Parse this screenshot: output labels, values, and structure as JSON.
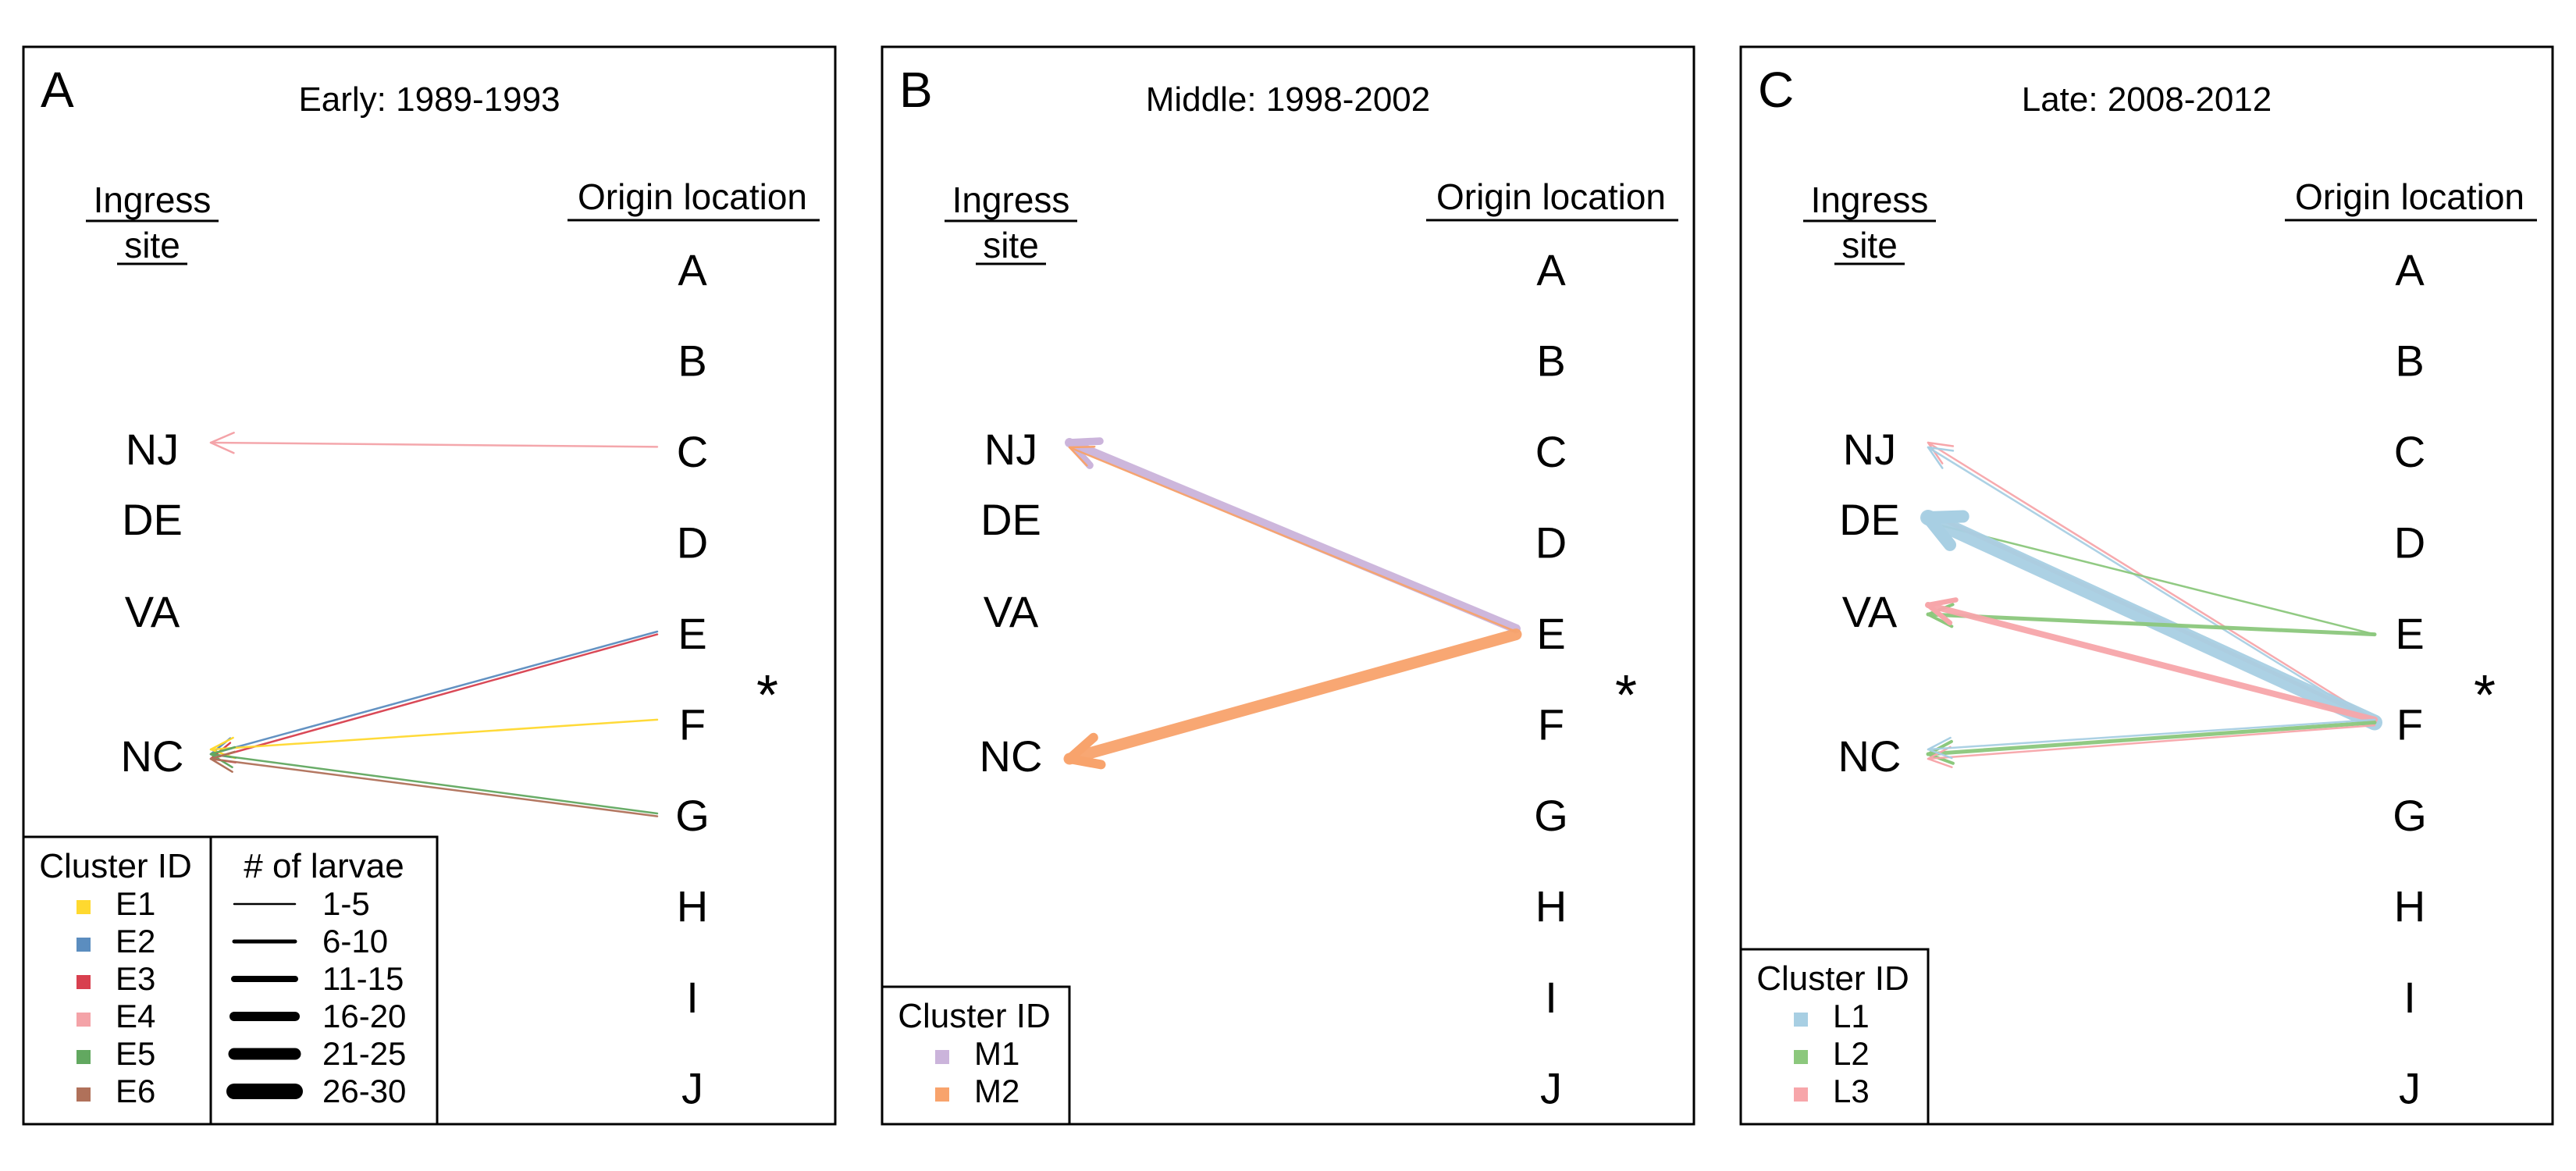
{
  "colors": {
    "E1": "#FFD92F",
    "E2": "#5B8DBF",
    "E3": "#D8404F",
    "E4": "#F4A3A8",
    "E5": "#62A860",
    "E6": "#B0715A",
    "M1": "#CBB4DB",
    "M2": "#F8A36C",
    "L1": "#A8CFE3",
    "L2": "#8CC87D",
    "L3": "#F7A6AA",
    "star": "#B8B8B8"
  },
  "labels": {
    "ingress_header_1": "Ingress",
    "ingress_header_2": "site",
    "origin_header": "Origin location",
    "cluster_id": "Cluster ID",
    "larvae_header": "# of larvae",
    "star": "*"
  },
  "ingress_sites": [
    "NJ",
    "DE",
    "VA",
    "NC"
  ],
  "origin_locations": [
    "A",
    "B",
    "C",
    "D",
    "E",
    "F",
    "G",
    "H",
    "I",
    "J"
  ],
  "larvae_bins": [
    "1-5",
    "6-10",
    "11-15",
    "16-20",
    "21-25",
    "26-30"
  ],
  "panels": [
    {
      "letter": "A",
      "title": "Early: 1989-1993",
      "clusters": [
        "E1",
        "E2",
        "E3",
        "E4",
        "E5",
        "E6"
      ],
      "flows": [
        {
          "cluster": "E4",
          "from": "C",
          "to": "NJ",
          "larvae_bin": "1-5"
        },
        {
          "cluster": "E2",
          "from": "E",
          "to": "NC",
          "larvae_bin": "1-5"
        },
        {
          "cluster": "E3",
          "from": "E",
          "to": "NC",
          "larvae_bin": "1-5"
        },
        {
          "cluster": "E1",
          "from": "F",
          "to": "NC",
          "larvae_bin": "1-5"
        },
        {
          "cluster": "E5",
          "from": "G",
          "to": "NC",
          "larvae_bin": "1-5"
        },
        {
          "cluster": "E6",
          "from": "G",
          "to": "NC",
          "larvae_bin": "1-5"
        }
      ]
    },
    {
      "letter": "B",
      "title": "Middle: 1998-2002",
      "clusters": [
        "M1",
        "M2"
      ],
      "flows": [
        {
          "cluster": "M1",
          "from": "E",
          "to": "NJ",
          "larvae_bin": "16-20"
        },
        {
          "cluster": "M2",
          "from": "E",
          "to": "NJ",
          "larvae_bin": "1-5"
        },
        {
          "cluster": "M2",
          "from": "E",
          "to": "NC",
          "larvae_bin": "21-25"
        }
      ]
    },
    {
      "letter": "C",
      "title": "Late: 2008-2012",
      "clusters": [
        "L1",
        "L2",
        "L3"
      ],
      "flows": [
        {
          "cluster": "L3",
          "from": "F",
          "to": "NJ",
          "larvae_bin": "1-5"
        },
        {
          "cluster": "L1",
          "from": "F",
          "to": "NJ",
          "larvae_bin": "1-5"
        },
        {
          "cluster": "L2",
          "from": "E",
          "to": "DE",
          "larvae_bin": "1-5"
        },
        {
          "cluster": "L3",
          "from": "F",
          "to": "DE",
          "larvae_bin": "6-10"
        },
        {
          "cluster": "L1",
          "from": "F",
          "to": "DE",
          "larvae_bin": "26-30"
        },
        {
          "cluster": "L2",
          "from": "E",
          "to": "VA",
          "larvae_bin": "6-10"
        },
        {
          "cluster": "L3",
          "from": "F",
          "to": "VA",
          "larvae_bin": "11-15"
        },
        {
          "cluster": "L2",
          "from": "F",
          "to": "NC",
          "larvae_bin": "6-10"
        },
        {
          "cluster": "L3",
          "from": "F",
          "to": "NC",
          "larvae_bin": "1-5"
        },
        {
          "cluster": "L1",
          "from": "F",
          "to": "NC",
          "larvae_bin": "1-5"
        }
      ]
    }
  ]
}
